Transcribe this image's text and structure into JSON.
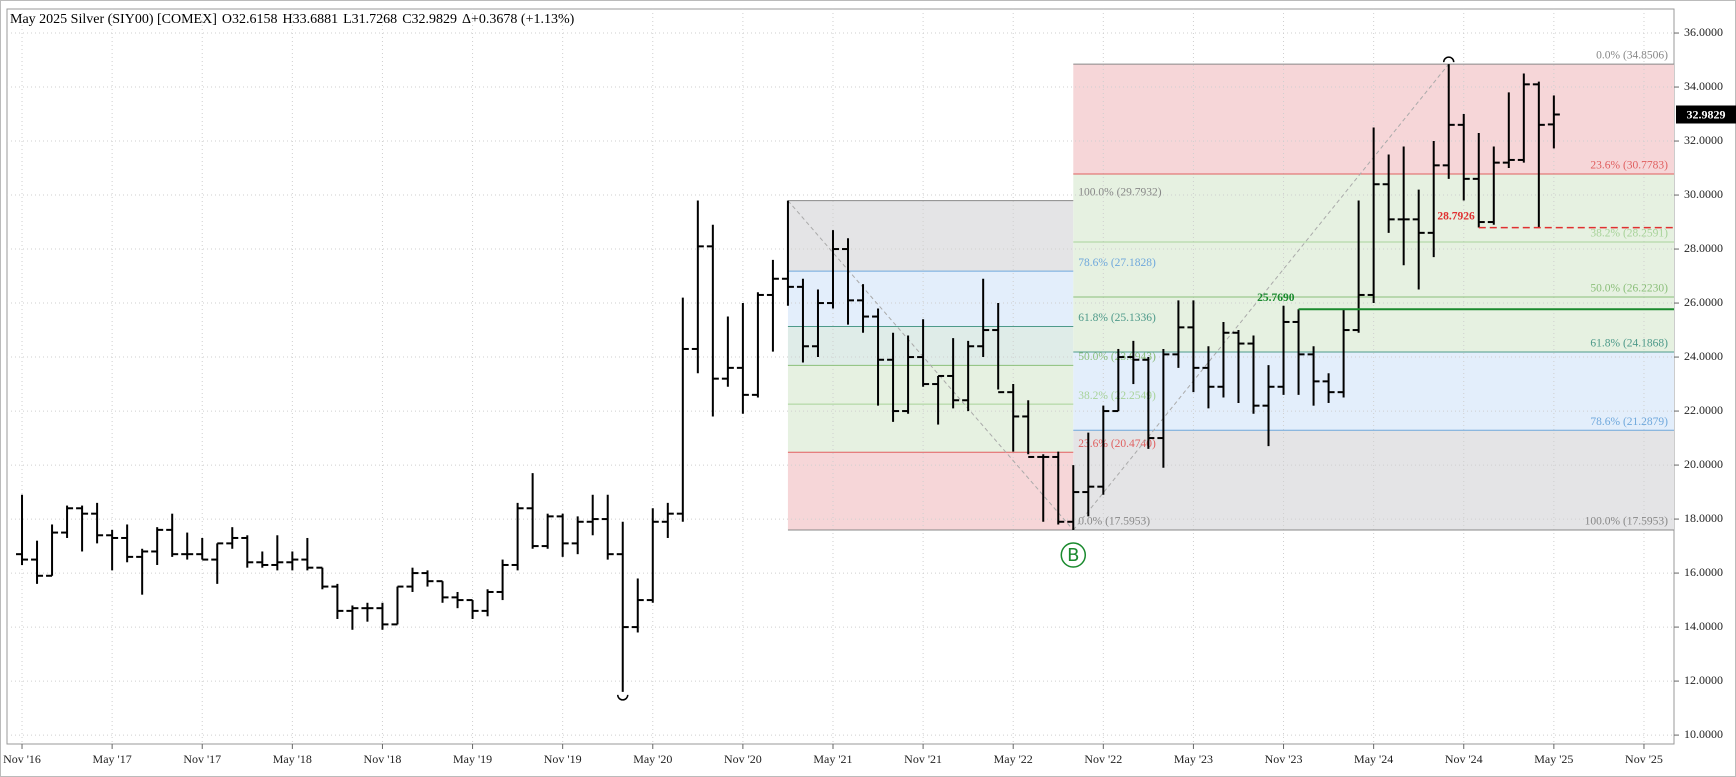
{
  "chart_data": {
    "type": "ohlc",
    "header": [
      "May 2025 Silver (SIY00) [COMEX]",
      "O32.6158",
      "H33.6881",
      "L31.7268",
      "C32.9829",
      "Δ+0.3678 (+1.13%)"
    ],
    "x": [
      "2016-11",
      "2016-12",
      "2017-01",
      "2017-02",
      "2017-03",
      "2017-04",
      "2017-05",
      "2017-06",
      "2017-07",
      "2017-08",
      "2017-09",
      "2017-10",
      "2017-11",
      "2017-12",
      "2018-01",
      "2018-02",
      "2018-03",
      "2018-04",
      "2018-05",
      "2018-06",
      "2018-07",
      "2018-08",
      "2018-09",
      "2018-10",
      "2018-11",
      "2018-12",
      "2019-01",
      "2019-02",
      "2019-03",
      "2019-04",
      "2019-05",
      "2019-06",
      "2019-07",
      "2019-08",
      "2019-09",
      "2019-10",
      "2019-11",
      "2019-12",
      "2020-01",
      "2020-02",
      "2020-03",
      "2020-04",
      "2020-05",
      "2020-06",
      "2020-07",
      "2020-08",
      "2020-09",
      "2020-10",
      "2020-11",
      "2020-12",
      "2021-01",
      "2021-02",
      "2021-03",
      "2021-04",
      "2021-05",
      "2021-06",
      "2021-07",
      "2021-08",
      "2021-09",
      "2021-10",
      "2021-11",
      "2021-12",
      "2022-01",
      "2022-02",
      "2022-03",
      "2022-04",
      "2022-05",
      "2022-06",
      "2022-07",
      "2022-08",
      "2022-09",
      "2022-10",
      "2022-11",
      "2022-12",
      "2023-01",
      "2023-02",
      "2023-03",
      "2023-04",
      "2023-05",
      "2023-06",
      "2023-07",
      "2023-08",
      "2023-09",
      "2023-10",
      "2023-11",
      "2023-12",
      "2024-01",
      "2024-02",
      "2024-03",
      "2024-04",
      "2024-05",
      "2024-06",
      "2024-07",
      "2024-08",
      "2024-09",
      "2024-10",
      "2024-11",
      "2024-12",
      "2025-01",
      "2025-02",
      "2025-03",
      "2025-04",
      "2025-05"
    ],
    "open": [
      16.7,
      16.5,
      15.9,
      17.5,
      18.4,
      18.2,
      17.4,
      17.3,
      16.6,
      16.8,
      17.6,
      16.7,
      16.7,
      16.5,
      17.1,
      17.3,
      16.4,
      16.3,
      16.4,
      16.5,
      16.2,
      15.5,
      14.6,
      14.7,
      14.7,
      14.1,
      15.5,
      16.0,
      15.7,
      15.1,
      15.0,
      14.6,
      15.3,
      16.3,
      18.4,
      17.0,
      18.1,
      17.1,
      17.9,
      18.0,
      16.7,
      14.0,
      15.0,
      17.9,
      18.2,
      24.3,
      28.1,
      23.2,
      23.6,
      22.6,
      26.3,
      26.9,
      26.6,
      24.4,
      26.0,
      28.0,
      26.1,
      25.5,
      23.9,
      22.0,
      24.0,
      23.0,
      23.3,
      22.4,
      24.4,
      25.0,
      22.7,
      21.8,
      20.3,
      20.3,
      17.9,
      19.0,
      19.2,
      22.0,
      24.0,
      23.9,
      21.0,
      24.1,
      25.1,
      23.6,
      22.9,
      24.9,
      24.5,
      22.2,
      22.9,
      25.3,
      24.1,
      23.1,
      22.7,
      25.0,
      26.3,
      30.4,
      29.1,
      29.1,
      28.6,
      31.1,
      32.6,
      30.6,
      29.0,
      31.2,
      31.3,
      34.1,
      32.6158
    ],
    "high": [
      18.9,
      17.2,
      17.8,
      18.5,
      18.5,
      18.6,
      17.6,
      17.8,
      16.9,
      17.7,
      18.2,
      17.5,
      17.3,
      17.1,
      17.7,
      17.4,
      16.8,
      17.4,
      16.8,
      17.3,
      16.2,
      15.6,
      14.8,
      14.9,
      14.9,
      15.5,
      16.2,
      16.1,
      15.7,
      15.3,
      15.0,
      15.4,
      16.5,
      18.6,
      19.7,
      18.2,
      18.2,
      18.1,
      18.9,
      18.9,
      17.9,
      15.8,
      18.4,
      18.6,
      26.2,
      29.8,
      28.9,
      25.5,
      26.0,
      26.4,
      27.6,
      29.7932,
      26.9,
      26.5,
      28.7,
      28.4,
      26.7,
      25.8,
      24.9,
      24.8,
      25.4,
      23.3,
      24.7,
      24.6,
      26.9,
      26.0,
      23.0,
      22.4,
      20.4,
      20.5,
      20.0,
      21.2,
      22.2,
      24.3,
      24.6,
      24.0,
      24.3,
      26.1,
      26.1,
      24.4,
      25.3,
      25.0,
      24.8,
      23.7,
      25.9,
      25.769,
      24.4,
      23.4,
      25.8,
      29.8,
      32.5,
      31.5,
      31.8,
      30.2,
      32.0,
      34.8506,
      33.0,
      32.3,
      31.8,
      33.8,
      34.5,
      34.2,
      33.6881
    ],
    "low": [
      16.3,
      15.6,
      15.9,
      17.3,
      16.8,
      17.1,
      16.1,
      16.4,
      15.2,
      16.3,
      16.6,
      16.5,
      16.5,
      15.6,
      16.9,
      16.2,
      16.2,
      16.1,
      16.1,
      16.1,
      15.4,
      14.3,
      13.9,
      14.2,
      13.9,
      14.1,
      15.3,
      15.5,
      14.9,
      14.7,
      14.3,
      14.4,
      15.0,
      16.1,
      16.9,
      16.9,
      16.6,
      16.7,
      17.4,
      16.5,
      11.6,
      13.8,
      14.9,
      17.3,
      17.9,
      23.4,
      21.8,
      22.9,
      21.9,
      22.5,
      24.2,
      25.9,
      23.8,
      24.0,
      25.8,
      25.2,
      24.9,
      22.2,
      21.6,
      21.9,
      22.9,
      21.5,
      22.1,
      22.0,
      24.0,
      22.8,
      20.5,
      20.4,
      17.9,
      17.8,
      17.5953,
      18.1,
      18.9,
      22.0,
      23.0,
      20.6,
      19.9,
      23.6,
      22.7,
      22.1,
      22.5,
      22.3,
      21.9,
      20.7,
      22.6,
      22.6,
      22.2,
      22.3,
      22.5,
      24.9,
      26.0,
      28.6,
      27.4,
      26.5,
      27.7,
      30.6,
      29.8,
      28.8,
      28.9,
      31.0,
      31.2,
      28.7926,
      31.7268
    ],
    "close": [
      16.5,
      15.9,
      17.5,
      18.4,
      18.2,
      17.4,
      17.3,
      16.6,
      16.8,
      17.6,
      16.7,
      16.7,
      16.5,
      17.1,
      17.3,
      16.4,
      16.3,
      16.4,
      16.5,
      16.2,
      15.5,
      14.6,
      14.7,
      14.7,
      14.1,
      15.5,
      16.0,
      15.7,
      15.1,
      15.0,
      14.6,
      15.3,
      16.3,
      18.4,
      17.0,
      18.1,
      17.1,
      17.9,
      18.0,
      16.7,
      14.0,
      15.0,
      17.9,
      18.2,
      24.3,
      28.1,
      23.2,
      23.6,
      22.6,
      26.3,
      26.9,
      26.6,
      24.4,
      26.0,
      28.0,
      26.1,
      25.5,
      23.9,
      22.0,
      24.0,
      23.0,
      23.3,
      22.4,
      24.4,
      25.0,
      22.7,
      21.8,
      20.3,
      20.3,
      17.9,
      19.0,
      19.2,
      22.0,
      24.0,
      23.9,
      21.0,
      24.1,
      25.1,
      23.6,
      22.9,
      24.9,
      24.5,
      22.2,
      22.9,
      25.3,
      24.1,
      23.1,
      22.7,
      25.0,
      26.3,
      30.4,
      29.1,
      29.1,
      28.6,
      31.1,
      32.6,
      30.6,
      29.0,
      31.2,
      31.3,
      34.1,
      32.6,
      32.9829
    ],
    "color": "#000000",
    "xlim": [
      "2016-10",
      "2026-01"
    ],
    "xticks": [
      {
        "value": "2016-11",
        "label": "Nov '16"
      },
      {
        "value": "2017-05",
        "label": "May '17"
      },
      {
        "value": "2017-11",
        "label": "Nov '17"
      },
      {
        "value": "2018-05",
        "label": "May '18"
      },
      {
        "value": "2018-11",
        "label": "Nov '18"
      },
      {
        "value": "2019-05",
        "label": "May '19"
      },
      {
        "value": "2019-11",
        "label": "Nov '19"
      },
      {
        "value": "2020-05",
        "label": "May '20"
      },
      {
        "value": "2020-11",
        "label": "Nov '20"
      },
      {
        "value": "2021-05",
        "label": "May '21"
      },
      {
        "value": "2021-11",
        "label": "Nov '21"
      },
      {
        "value": "2022-05",
        "label": "May '22"
      },
      {
        "value": "2022-11",
        "label": "Nov '22"
      },
      {
        "value": "2023-05",
        "label": "May '23"
      },
      {
        "value": "2023-11",
        "label": "Nov '23"
      },
      {
        "value": "2024-05",
        "label": "May '24"
      },
      {
        "value": "2024-11",
        "label": "Nov '24"
      },
      {
        "value": "2025-05",
        "label": "May '25"
      },
      {
        "value": "2025-11",
        "label": "Nov '25"
      }
    ],
    "ylim": [
      9.67,
      36.89
    ],
    "yticks": [
      {
        "value": 10,
        "label": "10.0000"
      },
      {
        "value": 12,
        "label": "12.0000"
      },
      {
        "value": 14,
        "label": "14.0000"
      },
      {
        "value": 16,
        "label": "16.0000"
      },
      {
        "value": 18,
        "label": "18.0000"
      },
      {
        "value": 20,
        "label": "20.0000"
      },
      {
        "value": 22,
        "label": "22.0000"
      },
      {
        "value": 24,
        "label": "24.0000"
      },
      {
        "value": 26,
        "label": "26.0000"
      },
      {
        "value": 28,
        "label": "28.0000"
      },
      {
        "value": 30,
        "label": "30.0000"
      },
      {
        "value": 32,
        "label": "32.0000"
      },
      {
        "value": 34,
        "label": "34.0000"
      },
      {
        "value": 36,
        "label": "36.0000"
      }
    ],
    "grid": true,
    "last_price": 32.9829,
    "fibs": [
      {
        "anchor_x": [
          "2021-02",
          "2022-09"
        ],
        "x_end": "2022-09",
        "label_position": "outside-right",
        "direction": "down",
        "levels": [
          {
            "value": 29.7932,
            "label": "100.0% (29.7932)",
            "color": "#888888",
            "fill": "#e4e4e6"
          },
          {
            "value": 27.1828,
            "label": "78.6% (27.1828)",
            "color": "#6fa8dc",
            "fill": "#e3eefb"
          },
          {
            "value": 25.1336,
            "label": "61.8% (25.1336)",
            "color": "#4e9a8a",
            "fill": "#dfece8"
          },
          {
            "value": 23.6943,
            "label": "50.0% (23.6943)",
            "color": "#8bbf7a",
            "fill": "#e6f1e1"
          },
          {
            "value": 22.2549,
            "label": "38.2% (22.2549)",
            "color": "#a8d39a",
            "fill": "#e6f1e1"
          },
          {
            "value": 20.474,
            "label": "23.6% (20.4740)",
            "color": "#e06060",
            "fill": "#f6d6d8"
          },
          {
            "value": 17.5953,
            "label": "0.0% (17.5953)",
            "color": "#888888"
          }
        ]
      },
      {
        "anchor_x": [
          "2022-09",
          "2024-10"
        ],
        "x_end": "2026-01",
        "label_position": "inside-right",
        "direction": "up",
        "levels": [
          {
            "value": 34.8506,
            "label": "0.0% (34.8506)",
            "color": "#888888",
            "fill": "#f6d6d8"
          },
          {
            "value": 30.7783,
            "label": "23.6% (30.7783)",
            "color": "#e06060",
            "fill": "#e6f1e1"
          },
          {
            "value": 28.2591,
            "label": "38.2% (28.2591)",
            "color": "#a8d39a",
            "fill": "#e6f1e1"
          },
          {
            "value": 26.223,
            "label": "50.0% (26.2230)",
            "color": "#8bbf7a",
            "fill": "#e6f1e1"
          },
          {
            "value": 24.1868,
            "label": "61.8% (24.1868)",
            "color": "#4e9a8a",
            "fill": "#e3eefb"
          },
          {
            "value": 21.2879,
            "label": "78.6% (21.2879)",
            "color": "#6fa8dc",
            "fill": "#e4e4e6"
          },
          {
            "value": 17.5953,
            "label": "100.0% (17.5953)",
            "color": "#888888"
          }
        ]
      }
    ],
    "levels": [
      {
        "value": 25.769,
        "label": "25.7690",
        "color": "#1a8a2e",
        "x_start": "2023-12",
        "dashed": false
      },
      {
        "value": 28.7926,
        "label": "28.7926",
        "color": "#e03030",
        "x_start": "2024-12",
        "dashed": true
      }
    ],
    "markers": [
      {
        "x": "2022-09",
        "label": "B",
        "color": "#1a8a2e"
      }
    ]
  }
}
